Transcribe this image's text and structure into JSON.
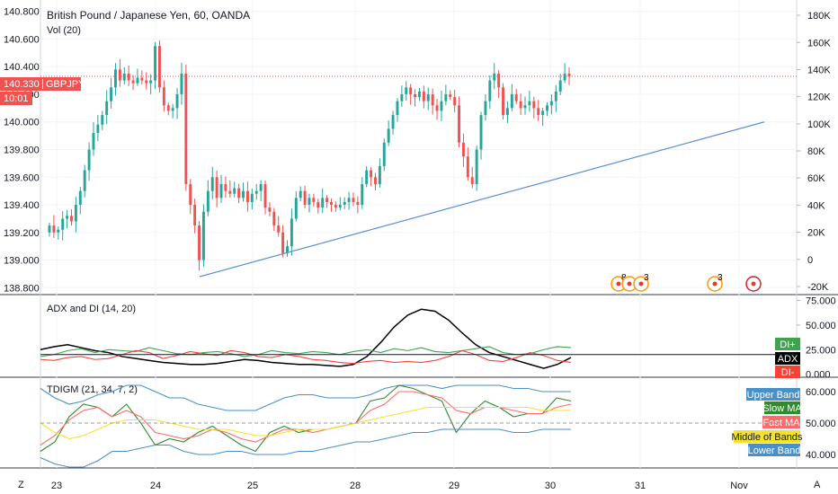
{
  "header": {
    "title": "British Pound / Japanese Yen, 60, OANDA",
    "volume_label": "Vol (20)",
    "symbol": "GBPJPY",
    "last_price": "140.330",
    "countdown": "10:01"
  },
  "colors": {
    "up": "#26a69a",
    "down": "#ef5350",
    "trendline": "#5b8fd6",
    "price_line": "#ef5350",
    "grid": "#f0f3fa",
    "separator": "#363a45",
    "adx": "#000000",
    "di_plus": "#3fa34d",
    "di_minus": "#f44336",
    "upper_band": "#4a90c8",
    "lower_band": "#4a90c8",
    "slow_ma": "#2e8b2e",
    "fast_ma": "#ff6b6b",
    "middle_bands": "#f5e32b"
  },
  "corner_labels": {
    "left": "Z",
    "right": "A"
  },
  "events": [
    {
      "icon": "event-flag-icon",
      "count": "8"
    },
    {
      "icon": "event-flag-icon",
      "count": ""
    },
    {
      "icon": "event-flag-icon",
      "count": "3"
    },
    {
      "icon": "event-flag-icon",
      "count": "3"
    },
    {
      "icon": "uk-flag-icon",
      "count": ""
    }
  ],
  "chart_data": [
    {
      "type": "candlestick",
      "title": "British Pound / Japanese Yen, 60, OANDA",
      "x_ticks": [
        "23",
        "24",
        "25",
        "28",
        "29",
        "30",
        "31",
        "Nov"
      ],
      "y_ticks": [
        "138.800",
        "139.000",
        "139.200",
        "139.400",
        "139.600",
        "139.800",
        "140.000",
        "140.200",
        "140.400",
        "140.600",
        "140.800"
      ],
      "ylim": [
        138.75,
        140.85
      ],
      "volume_ticks": [
        "-20K",
        "0",
        "20K",
        "40K",
        "60K",
        "80K",
        "100K",
        "120K",
        "140K",
        "160K",
        "180K"
      ],
      "volume_ylim": [
        -26000,
        188000
      ],
      "last_price": 140.33,
      "closes": [
        139.25,
        139.2,
        139.22,
        139.3,
        139.32,
        139.28,
        139.4,
        139.5,
        139.65,
        139.8,
        139.92,
        139.98,
        140.05,
        140.15,
        140.25,
        140.38,
        140.3,
        140.35,
        140.3,
        140.28,
        140.32,
        140.3,
        140.28,
        140.3,
        140.55,
        140.25,
        140.12,
        140.08,
        140.1,
        140.2,
        140.35,
        139.55,
        139.4,
        139.25,
        139.0,
        139.35,
        139.5,
        139.6,
        139.45,
        139.55,
        139.5,
        139.48,
        139.52,
        139.45,
        139.5,
        139.42,
        139.48,
        139.5,
        139.55,
        139.38,
        139.35,
        139.25,
        139.2,
        139.05,
        139.1,
        139.3,
        139.45,
        139.5,
        139.4,
        139.45,
        139.42,
        139.38,
        139.45,
        139.42,
        139.4,
        139.38,
        139.4,
        139.42,
        139.45,
        139.42,
        139.4,
        139.55,
        139.65,
        139.6,
        139.55,
        139.68,
        139.85,
        139.95,
        140.05,
        140.15,
        140.2,
        140.25,
        140.2,
        140.18,
        140.22,
        140.15,
        140.2,
        140.12,
        140.08,
        140.15,
        140.2,
        140.18,
        140.12,
        139.85,
        139.75,
        139.6,
        139.55,
        139.8,
        140.05,
        140.15,
        140.3,
        140.35,
        140.25,
        140.05,
        140.1,
        140.2,
        140.15,
        140.1,
        140.12,
        140.15,
        140.1,
        140.05,
        140.08,
        140.12,
        140.15,
        140.22,
        140.3,
        140.35,
        140.33
      ],
      "trendline": {
        "from": {
          "x": "24",
          "y": 138.88
        },
        "to": {
          "x": "Nov",
          "y": 140.0
        }
      }
    },
    {
      "type": "line",
      "title": "ADX and DI (14, 20)",
      "y_ticks": [
        "0.000",
        "25.000",
        "50.000",
        "75.000"
      ],
      "ylim": [
        -3,
        79
      ],
      "threshold": 20,
      "legend": [
        "DI+",
        "ADX",
        "DI-"
      ],
      "series": [
        {
          "name": "ADX",
          "values": [
            25,
            28,
            30,
            27,
            24,
            22,
            18,
            16,
            14,
            12,
            11,
            10,
            10,
            11,
            13,
            15,
            14,
            12,
            11,
            10,
            10,
            9,
            8,
            10,
            18,
            32,
            48,
            60,
            66,
            64,
            55,
            42,
            30,
            22,
            18,
            14,
            10,
            6,
            10,
            17
          ]
        },
        {
          "name": "DI+",
          "values": [
            18,
            20,
            24,
            26,
            22,
            25,
            24,
            23,
            27,
            24,
            21,
            20,
            22,
            23,
            21,
            18,
            20,
            24,
            22,
            21,
            23,
            22,
            20,
            23,
            25,
            22,
            26,
            24,
            27,
            23,
            22,
            24,
            26,
            28,
            22,
            20,
            21,
            25,
            28,
            27
          ]
        },
        {
          "name": "DI-",
          "values": [
            15,
            14,
            17,
            18,
            15,
            16,
            20,
            24,
            22,
            16,
            19,
            23,
            21,
            19,
            24,
            22,
            18,
            17,
            20,
            18,
            15,
            14,
            12,
            11,
            13,
            14,
            12,
            13,
            12,
            14,
            18,
            24,
            20,
            14,
            13,
            17,
            22,
            19,
            14,
            12
          ]
        }
      ]
    },
    {
      "type": "line",
      "title": "TDIGM (21, 34, 7, 2)",
      "y_ticks": [
        "40.000",
        "50.000",
        "60.000"
      ],
      "ylim": [
        36,
        64
      ],
      "reference_line": 50,
      "legend": [
        "Upper Band",
        "Slow MA",
        "Fast MA",
        "Middle of Bands",
        "Lower Band"
      ],
      "series": [
        {
          "name": "Upper Band",
          "values": [
            61,
            58,
            56,
            57,
            59,
            60,
            62,
            62,
            60,
            58,
            58,
            56,
            55,
            54,
            54,
            54,
            56,
            58,
            59,
            59,
            58,
            58,
            58,
            59,
            61,
            62,
            62,
            62,
            61,
            62,
            62,
            62,
            62,
            61,
            61,
            60,
            60,
            60
          ]
        },
        {
          "name": "Slow MA",
          "values": [
            41,
            44,
            52,
            56,
            55,
            52,
            56,
            50,
            43,
            45,
            44,
            47,
            49,
            46,
            43,
            41,
            47,
            49,
            47,
            48,
            48,
            49,
            50,
            57,
            58,
            62,
            61,
            59,
            57,
            47,
            53,
            57,
            55,
            52,
            53,
            53,
            58,
            57
          ]
        },
        {
          "name": "Fast MA",
          "values": [
            43,
            46,
            51,
            54,
            55,
            52,
            54,
            52,
            47,
            46,
            45,
            46,
            48,
            47,
            45,
            44,
            46,
            48,
            48,
            47,
            48,
            49,
            50,
            54,
            56,
            60,
            60,
            59,
            58,
            54,
            53,
            55,
            55,
            54,
            53,
            53,
            55,
            56
          ]
        },
        {
          "name": "Middle of Bands",
          "values": [
            50,
            47,
            45,
            46,
            48,
            50,
            51,
            51,
            51,
            50,
            49,
            48,
            48,
            48,
            47,
            46,
            46,
            47,
            48,
            48,
            48,
            49,
            50,
            51,
            52,
            53,
            54,
            55,
            55,
            55,
            55,
            55,
            55,
            55,
            55,
            54,
            54,
            54
          ]
        },
        {
          "name": "Lower Band",
          "values": [
            39,
            37,
            36,
            36,
            38,
            41,
            41,
            42,
            43,
            43,
            41,
            40,
            40,
            41,
            41,
            40,
            40,
            40,
            41,
            41,
            42,
            43,
            44,
            44,
            45,
            46,
            47,
            47,
            48,
            48,
            48,
            48,
            48,
            47,
            47,
            48,
            48,
            48
          ]
        }
      ]
    }
  ]
}
